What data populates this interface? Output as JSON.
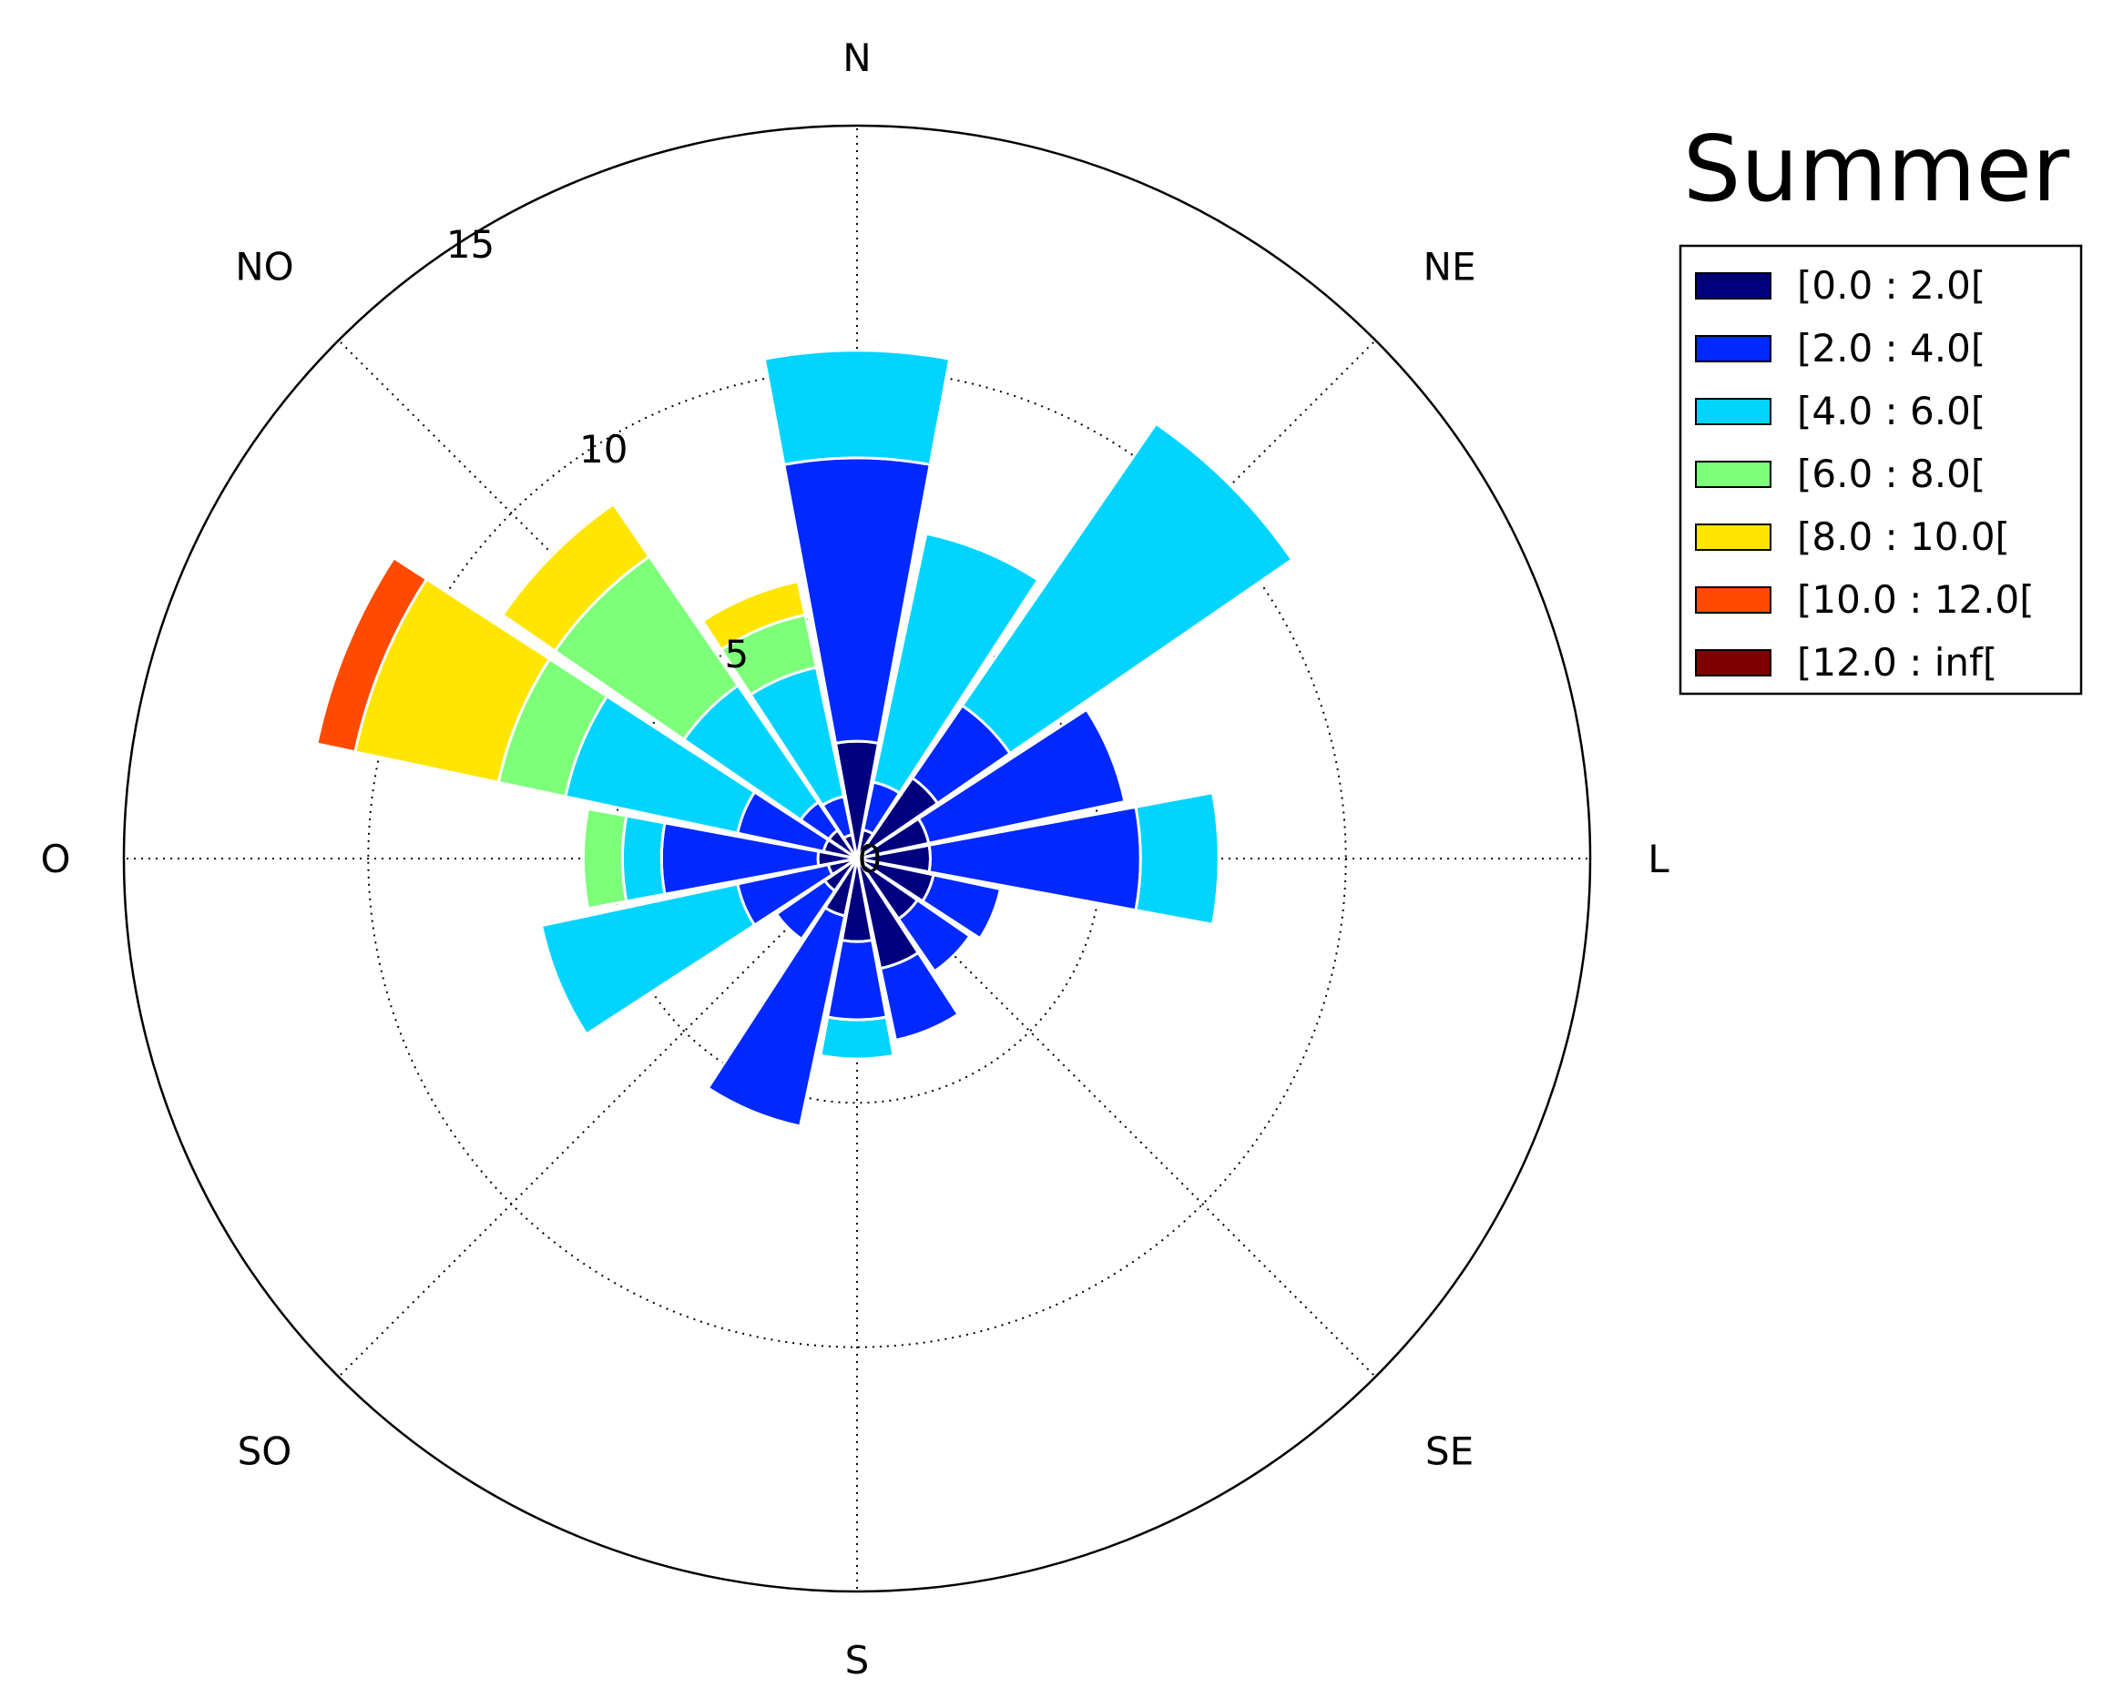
{
  "chart_data": {
    "type": "windrose",
    "title": "Summer",
    "direction_labels": [
      "N",
      "NE",
      "L",
      "SE",
      "S",
      "SO",
      "O",
      "NO"
    ],
    "radial_ticks": [
      0,
      5,
      10,
      15
    ],
    "rmax": 15,
    "grid": true,
    "legend_position": "top-right",
    "bins": [
      {
        "label": "[0.0 : 2.0[",
        "color": "#00007f"
      },
      {
        "label": "[2.0 : 4.0[",
        "color": "#0028ff"
      },
      {
        "label": "[4.0 : 6.0[",
        "color": "#00d4ff"
      },
      {
        "label": "[6.0 : 8.0[",
        "color": "#7dff7a"
      },
      {
        "label": "[8.0 : 10.0[",
        "color": "#ffe500"
      },
      {
        "label": "[10.0 : 12.0[",
        "color": "#ff4a00"
      },
      {
        "label": "[12.0 : inf[",
        "color": "#7f0000"
      }
    ],
    "sectors": [
      {
        "direction": 0,
        "cumulative": [
          2.4,
          8.2,
          10.4
        ]
      },
      {
        "direction": 22.5,
        "cumulative": [
          0.6,
          1.6,
          6.8
        ]
      },
      {
        "direction": 45,
        "cumulative": [
          2.0,
          3.8,
          10.8
        ]
      },
      {
        "direction": 67.5,
        "cumulative": [
          1.5,
          5.6
        ]
      },
      {
        "direction": 90,
        "cumulative": [
          1.5,
          5.8,
          7.4
        ]
      },
      {
        "direction": 112.5,
        "cumulative": [
          1.6,
          3.0
        ]
      },
      {
        "direction": 135,
        "cumulative": [
          1.5,
          2.8
        ]
      },
      {
        "direction": 157.5,
        "cumulative": [
          2.3,
          3.8
        ]
      },
      {
        "direction": 180,
        "cumulative": [
          1.7,
          3.3,
          4.1
        ]
      },
      {
        "direction": 202.5,
        "cumulative": [
          1.2,
          5.6
        ]
      },
      {
        "direction": 225,
        "cumulative": [
          0.8,
          2.0
        ]
      },
      {
        "direction": 247.5,
        "cumulative": [
          0.6,
          2.5,
          6.6
        ]
      },
      {
        "direction": 270,
        "cumulative": [
          0.8,
          4.0,
          4.8,
          5.6
        ]
      },
      {
        "direction": 292.5,
        "cumulative": [
          0.7,
          2.5,
          6.1,
          7.5,
          10.5,
          11.3
        ]
      },
      {
        "direction": 315,
        "cumulative": [
          0.7,
          1.4,
          4.3,
          7.5,
          8.8
        ]
      },
      {
        "direction": 337.5,
        "cumulative": [
          0.5,
          1.3,
          4.0,
          5.1,
          5.8
        ]
      }
    ]
  }
}
